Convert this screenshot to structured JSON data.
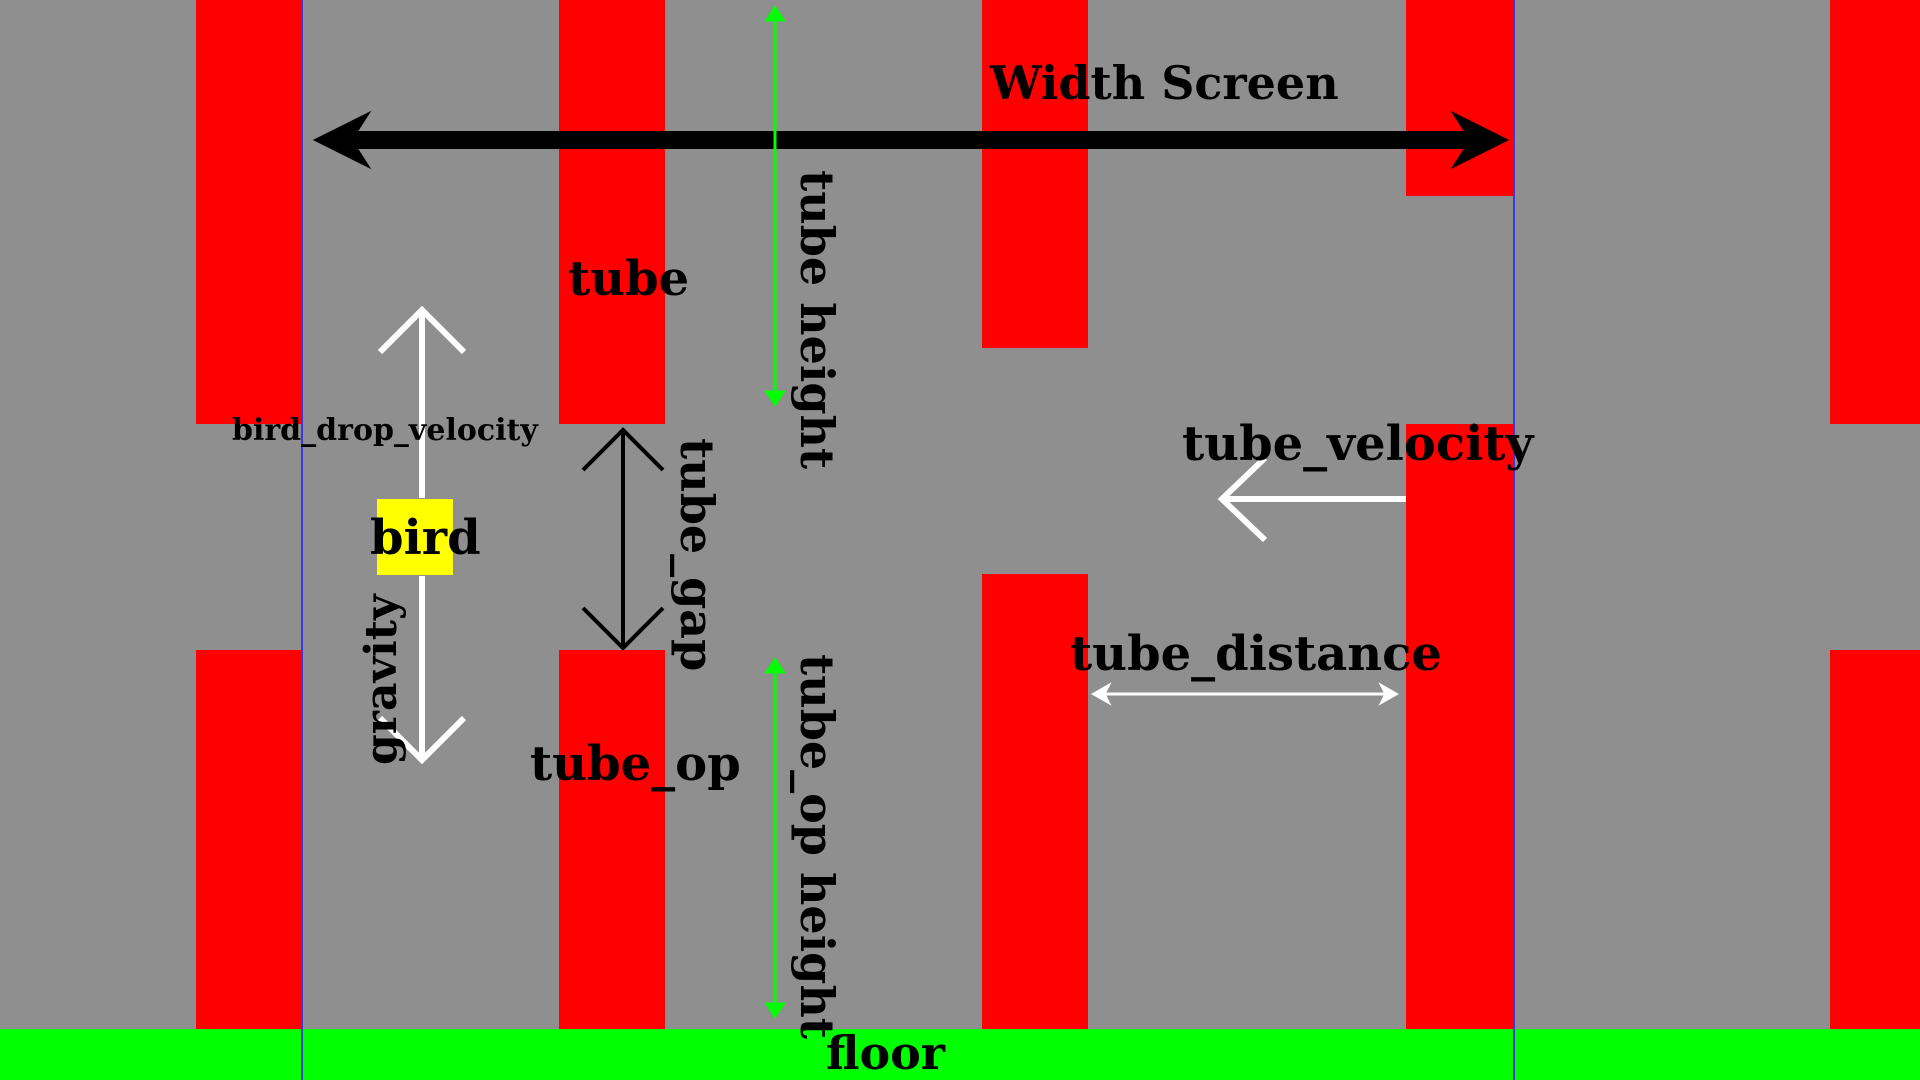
{
  "labels": {
    "width_screen": "Width Screen",
    "tube": "tube",
    "tube_height": "tube height",
    "bird_drop_velocity": "bird_drop_velocity",
    "bird": "bird",
    "tube_gap": "tube_gap",
    "gravity": "gravity",
    "tube_op": "tube_op",
    "tube_op_height": "tube_op height",
    "tube_velocity": "tube_velocity",
    "tube_distance": "tube_distance",
    "floor": "floor"
  },
  "colors": {
    "background": "#8f8f8f",
    "tube": "#ff0000",
    "floor": "#00ff00",
    "bird": "#ffff00",
    "screen_border": "#3a3ad8",
    "height_arrow": "#00ff00",
    "white_arrow": "#ffffff",
    "black_arrow": "#000000"
  }
}
